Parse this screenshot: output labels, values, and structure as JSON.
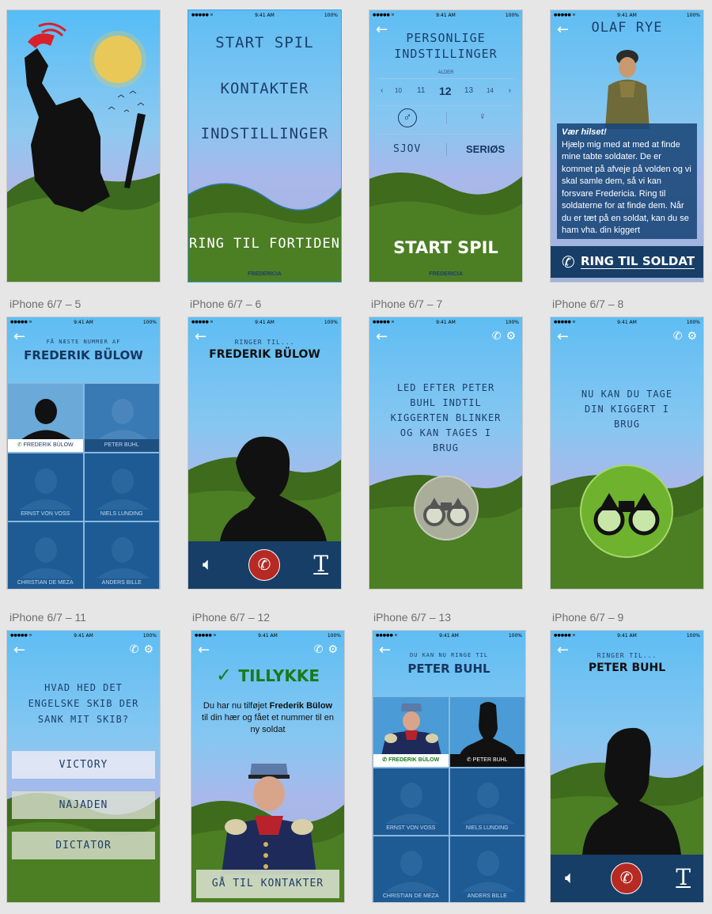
{
  "status": {
    "time": "9:41 AM",
    "battery": "100%"
  },
  "row_labels": [
    "iPhone 6/7 – 5",
    "iPhone 6/7 – 6",
    "iPhone 6/7 – 7",
    "iPhone 6/7 – 8",
    "iPhone 6/7 – 11",
    "iPhone 6/7 – 12",
    "iPhone 6/7 – 13",
    "iPhone 6/7 – 9"
  ],
  "menu": {
    "start": "START SPIL",
    "contacts": "KONTAKTER",
    "settings": "INDSTILLINGER",
    "call_past": "RING TIL FORTIDEN",
    "logo": "FREDERICIA"
  },
  "settings": {
    "title1": "PERSONLIGE",
    "title2": "INDSTILLINGER",
    "age_label": "ALDER",
    "ages": [
      "10",
      "11",
      "12",
      "13",
      "14"
    ],
    "male": "♂",
    "female": "♀",
    "fun": "SJOV",
    "serious": "SERIØS",
    "start": "START SPIL",
    "logo": "FREDERICIA"
  },
  "olaf": {
    "name": "OLAF RYE",
    "greeting": "Vær hilset!",
    "text": "Hjælp mig med at med at finde mine tabte soldater. De er kommet på afveje på volden og vi skal samle dem, så vi kan forsvare Fredericia. Ring til soldaterne for at finde dem. Når du er tæt på en soldat, kan du se ham vha. din kiggert",
    "call_btn": "RING TIL SOLDAT"
  },
  "contacts5": {
    "sub": "FÅ NÆSTE NUMMER AF",
    "title": "FREDERIK BÜLOW",
    "names": [
      "FREDERIK BÜLOW",
      "PETER BUHL",
      "ERNST VON VOSS",
      "NIELS LUNDING",
      "CHRISTIAN DE MEZA",
      "ANDERS BILLE"
    ]
  },
  "calling6": {
    "sub": "RINGER TIL...",
    "name": "FREDERIK BÜLOW"
  },
  "search7": {
    "text": "LED EFTER PETER BUHL INDTIL KIGGERTEN BLINKER OG KAN TAGES I BRUG"
  },
  "search8": {
    "text": "NU KAN DU TAGE DIN KIGGERT I BRUG"
  },
  "quiz11": {
    "question": "HVAD HED DET ENGELSKE SKIB DER SANK MIT SKIB?",
    "options": [
      "VICTORY",
      "NAJADEN",
      "DICTATOR"
    ]
  },
  "congrats12": {
    "title": "TILLYKKE",
    "text_pre": "Du har nu tilføjet",
    "text_name": "Frederik Bülow",
    "text_post": "til din hær og fået et nummer til en ny soldat",
    "button": "GÅ TIL KONTAKTER"
  },
  "contacts13": {
    "sub": "DU KAN NU RINGE TIL",
    "title": "PETER BUHL",
    "names": [
      "FREDERIK BÜLOW",
      "PETER BUHL",
      "ERNST VON VOSS",
      "NIELS LUNDING",
      "CHRISTIAN DE MEZA",
      "ANDERS BILLE"
    ]
  },
  "calling9": {
    "sub": "RINGER TIL...",
    "name": "PETER BUHL"
  },
  "colors": {
    "sky": "#5fbdf3",
    "navy": "#173e66",
    "grass": "#3f6b1f",
    "accent_green": "#1a8a1a",
    "hangup": "#b52a22"
  }
}
